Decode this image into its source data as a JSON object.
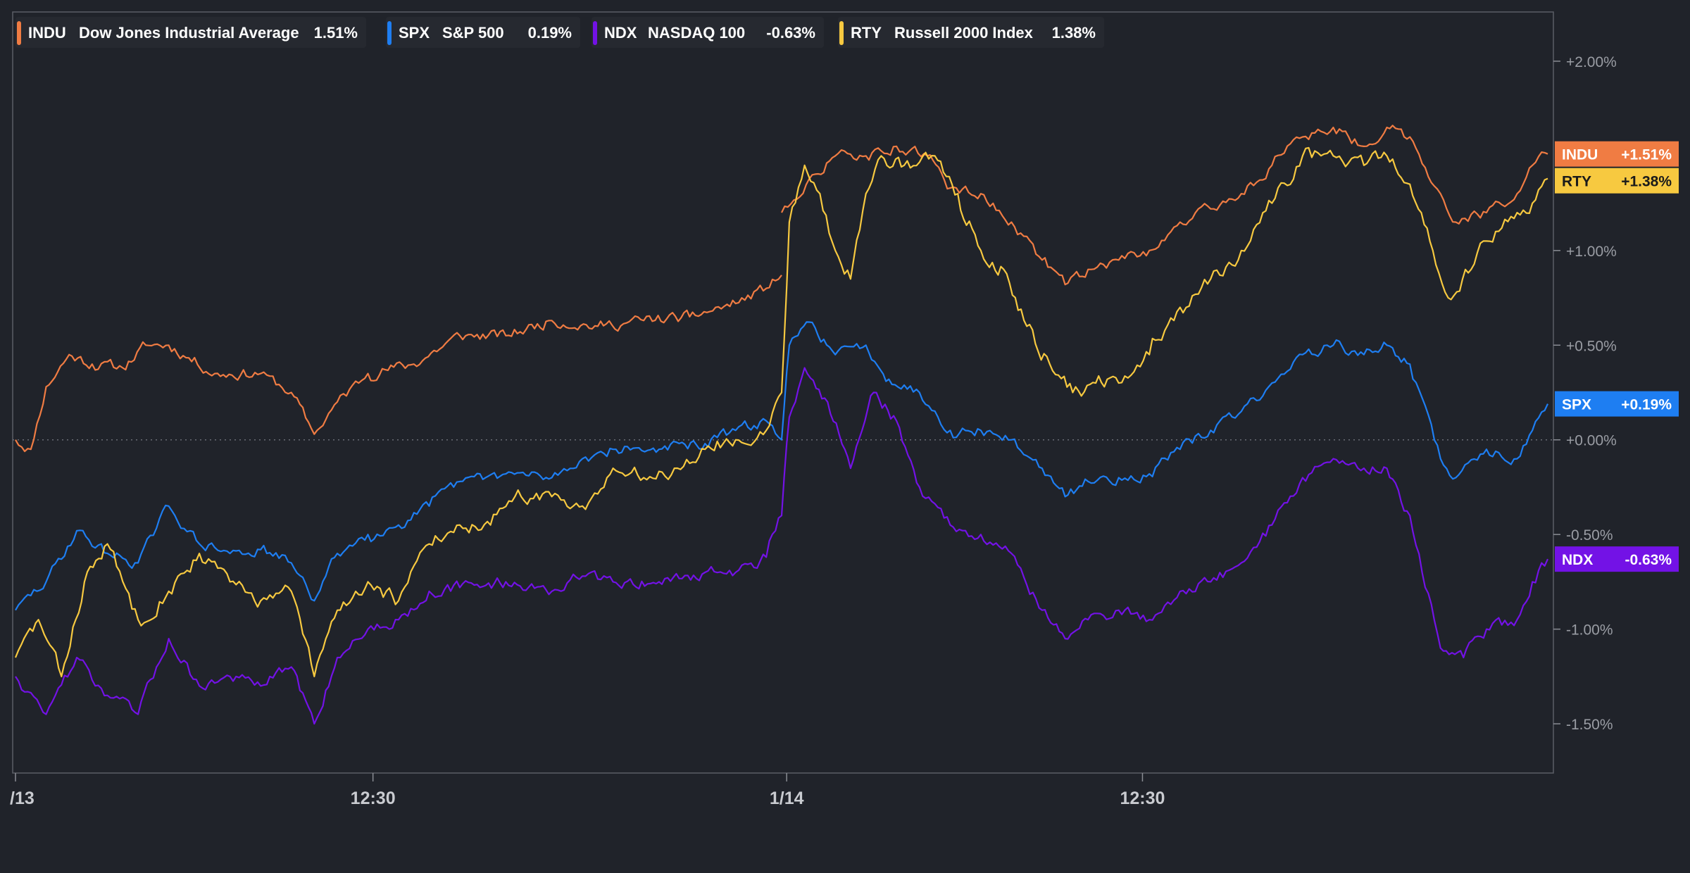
{
  "chart_data": {
    "type": "line",
    "title": "",
    "xlabel": "",
    "ylabel": "",
    "ylim": [
      -1.76,
      2.26
    ],
    "grid": false,
    "baseline": 0,
    "legend_placement": "top-left",
    "x_tick_labels": [
      "/13",
      "12:30",
      "1/14",
      "12:30"
    ],
    "y_tick_labels": [
      "+2.00%",
      "+1.00%",
      "+0.50%",
      "+0.00%",
      "-0.50%",
      "-1.00%",
      "-1.50%"
    ],
    "y_tick_values": [
      2.0,
      1.0,
      0.5,
      0.0,
      -0.5,
      -1.0,
      -1.5
    ],
    "series": [
      {
        "symbol": "INDU",
        "name": "Dow Jones Industrial Average",
        "change_label": "1.51%",
        "end_label": "+1.51%",
        "color": "#f07c43",
        "end_text_color": "#ffffff",
        "points": [
          [
            0.0,
            0.0
          ],
          [
            0.01,
            -0.05
          ],
          [
            0.02,
            0.28
          ],
          [
            0.035,
            0.45
          ],
          [
            0.05,
            0.4
          ],
          [
            0.07,
            0.38
          ],
          [
            0.085,
            0.5
          ],
          [
            0.1,
            0.5
          ],
          [
            0.13,
            0.35
          ],
          [
            0.16,
            0.35
          ],
          [
            0.18,
            0.25
          ],
          [
            0.195,
            0.03
          ],
          [
            0.21,
            0.2
          ],
          [
            0.23,
            0.35
          ],
          [
            0.26,
            0.4
          ],
          [
            0.29,
            0.55
          ],
          [
            0.32,
            0.55
          ],
          [
            0.35,
            0.63
          ],
          [
            0.38,
            0.6
          ],
          [
            0.41,
            0.63
          ],
          [
            0.44,
            0.65
          ],
          [
            0.47,
            0.72
          ],
          [
            0.49,
            0.8
          ],
          [
            0.5,
            0.87
          ],
          [
            0.5,
            1.2
          ],
          [
            0.52,
            1.4
          ],
          [
            0.535,
            1.5
          ],
          [
            0.555,
            1.5
          ],
          [
            0.575,
            1.55
          ],
          [
            0.595,
            1.5
          ],
          [
            0.61,
            1.33
          ],
          [
            0.63,
            1.3
          ],
          [
            0.65,
            1.15
          ],
          [
            0.67,
            0.95
          ],
          [
            0.685,
            0.82
          ],
          [
            0.7,
            0.9
          ],
          [
            0.72,
            0.95
          ],
          [
            0.74,
            1.0
          ],
          [
            0.76,
            1.15
          ],
          [
            0.78,
            1.22
          ],
          [
            0.8,
            1.3
          ],
          [
            0.82,
            1.45
          ],
          [
            0.84,
            1.6
          ],
          [
            0.86,
            1.65
          ],
          [
            0.88,
            1.55
          ],
          [
            0.895,
            1.65
          ],
          [
            0.91,
            1.6
          ],
          [
            0.93,
            1.3
          ],
          [
            0.94,
            1.15
          ],
          [
            0.96,
            1.2
          ],
          [
            0.98,
            1.3
          ],
          [
            0.99,
            1.45
          ],
          [
            1.0,
            1.51
          ]
        ]
      },
      {
        "symbol": "SPX",
        "name": "S&P 500",
        "change_label": "0.19%",
        "end_label": "+0.19%",
        "color": "#1e7ef2",
        "end_text_color": "#ffffff",
        "points": [
          [
            0.0,
            -0.9
          ],
          [
            0.02,
            -0.75
          ],
          [
            0.04,
            -0.48
          ],
          [
            0.06,
            -0.6
          ],
          [
            0.08,
            -0.65
          ],
          [
            0.1,
            -0.35
          ],
          [
            0.12,
            -0.55
          ],
          [
            0.14,
            -0.6
          ],
          [
            0.16,
            -0.58
          ],
          [
            0.18,
            -0.65
          ],
          [
            0.195,
            -0.85
          ],
          [
            0.21,
            -0.6
          ],
          [
            0.23,
            -0.5
          ],
          [
            0.25,
            -0.45
          ],
          [
            0.27,
            -0.35
          ],
          [
            0.29,
            -0.22
          ],
          [
            0.32,
            -0.18
          ],
          [
            0.35,
            -0.2
          ],
          [
            0.37,
            -0.1
          ],
          [
            0.39,
            -0.05
          ],
          [
            0.42,
            -0.05
          ],
          [
            0.45,
            -0.02
          ],
          [
            0.47,
            0.05
          ],
          [
            0.49,
            0.1
          ],
          [
            0.5,
            0.0
          ],
          [
            0.505,
            0.5
          ],
          [
            0.52,
            0.62
          ],
          [
            0.535,
            0.45
          ],
          [
            0.555,
            0.5
          ],
          [
            0.57,
            0.32
          ],
          [
            0.59,
            0.25
          ],
          [
            0.61,
            0.05
          ],
          [
            0.63,
            0.05
          ],
          [
            0.65,
            0.0
          ],
          [
            0.67,
            -0.15
          ],
          [
            0.685,
            -0.3
          ],
          [
            0.7,
            -0.22
          ],
          [
            0.72,
            -0.2
          ],
          [
            0.74,
            -0.18
          ],
          [
            0.76,
            -0.05
          ],
          [
            0.78,
            0.05
          ],
          [
            0.8,
            0.15
          ],
          [
            0.82,
            0.3
          ],
          [
            0.84,
            0.45
          ],
          [
            0.86,
            0.5
          ],
          [
            0.88,
            0.45
          ],
          [
            0.895,
            0.5
          ],
          [
            0.91,
            0.4
          ],
          [
            0.93,
            -0.1
          ],
          [
            0.94,
            -0.2
          ],
          [
            0.96,
            -0.05
          ],
          [
            0.98,
            -0.1
          ],
          [
            0.99,
            0.05
          ],
          [
            1.0,
            0.19
          ]
        ]
      },
      {
        "symbol": "NDX",
        "name": "NASDAQ 100",
        "change_label": "-0.63%",
        "end_label": "-0.63%",
        "color": "#7312e6",
        "end_text_color": "#ffffff",
        "points": [
          [
            0.0,
            -1.25
          ],
          [
            0.02,
            -1.45
          ],
          [
            0.04,
            -1.15
          ],
          [
            0.06,
            -1.35
          ],
          [
            0.08,
            -1.45
          ],
          [
            0.1,
            -1.05
          ],
          [
            0.12,
            -1.3
          ],
          [
            0.14,
            -1.25
          ],
          [
            0.16,
            -1.3
          ],
          [
            0.18,
            -1.2
          ],
          [
            0.195,
            -1.5
          ],
          [
            0.21,
            -1.15
          ],
          [
            0.23,
            -1.0
          ],
          [
            0.25,
            -0.95
          ],
          [
            0.27,
            -0.8
          ],
          [
            0.29,
            -0.78
          ],
          [
            0.32,
            -0.75
          ],
          [
            0.35,
            -0.8
          ],
          [
            0.37,
            -0.72
          ],
          [
            0.39,
            -0.75
          ],
          [
            0.42,
            -0.75
          ],
          [
            0.45,
            -0.7
          ],
          [
            0.47,
            -0.7
          ],
          [
            0.49,
            -0.62
          ],
          [
            0.5,
            -0.4
          ],
          [
            0.505,
            0.12
          ],
          [
            0.515,
            0.38
          ],
          [
            0.53,
            0.2
          ],
          [
            0.545,
            -0.15
          ],
          [
            0.56,
            0.25
          ],
          [
            0.575,
            0.1
          ],
          [
            0.59,
            -0.25
          ],
          [
            0.61,
            -0.45
          ],
          [
            0.63,
            -0.5
          ],
          [
            0.65,
            -0.6
          ],
          [
            0.67,
            -0.9
          ],
          [
            0.685,
            -1.05
          ],
          [
            0.7,
            -0.95
          ],
          [
            0.72,
            -0.9
          ],
          [
            0.74,
            -0.95
          ],
          [
            0.76,
            -0.8
          ],
          [
            0.78,
            -0.75
          ],
          [
            0.8,
            -0.65
          ],
          [
            0.82,
            -0.45
          ],
          [
            0.84,
            -0.2
          ],
          [
            0.86,
            -0.1
          ],
          [
            0.88,
            -0.15
          ],
          [
            0.895,
            -0.15
          ],
          [
            0.91,
            -0.4
          ],
          [
            0.93,
            -1.1
          ],
          [
            0.945,
            -1.15
          ],
          [
            0.96,
            -1.0
          ],
          [
            0.98,
            -0.95
          ],
          [
            0.99,
            -0.75
          ],
          [
            1.0,
            -0.63
          ]
        ]
      },
      {
        "symbol": "RTY",
        "name": "Russell 2000 Index",
        "change_label": "1.38%",
        "end_label": "+1.38%",
        "color": "#f7c940",
        "end_text_color": "#1a1a1a",
        "points": [
          [
            0.0,
            -1.15
          ],
          [
            0.015,
            -0.95
          ],
          [
            0.03,
            -1.25
          ],
          [
            0.045,
            -0.75
          ],
          [
            0.06,
            -0.55
          ],
          [
            0.08,
            -0.95
          ],
          [
            0.1,
            -0.8
          ],
          [
            0.12,
            -0.6
          ],
          [
            0.14,
            -0.75
          ],
          [
            0.16,
            -0.85
          ],
          [
            0.18,
            -0.8
          ],
          [
            0.195,
            -1.25
          ],
          [
            0.21,
            -0.9
          ],
          [
            0.23,
            -0.75
          ],
          [
            0.25,
            -0.85
          ],
          [
            0.27,
            -0.55
          ],
          [
            0.29,
            -0.45
          ],
          [
            0.31,
            -0.45
          ],
          [
            0.33,
            -0.3
          ],
          [
            0.35,
            -0.3
          ],
          [
            0.37,
            -0.35
          ],
          [
            0.39,
            -0.15
          ],
          [
            0.41,
            -0.2
          ],
          [
            0.43,
            -0.15
          ],
          [
            0.45,
            -0.05
          ],
          [
            0.47,
            0.0
          ],
          [
            0.49,
            0.05
          ],
          [
            0.5,
            0.25
          ],
          [
            0.505,
            1.15
          ],
          [
            0.515,
            1.45
          ],
          [
            0.525,
            1.3
          ],
          [
            0.535,
            1.0
          ],
          [
            0.545,
            0.85
          ],
          [
            0.555,
            1.3
          ],
          [
            0.565,
            1.5
          ],
          [
            0.58,
            1.45
          ],
          [
            0.6,
            1.5
          ],
          [
            0.615,
            1.3
          ],
          [
            0.63,
            1.0
          ],
          [
            0.645,
            0.9
          ],
          [
            0.66,
            0.6
          ],
          [
            0.675,
            0.4
          ],
          [
            0.69,
            0.25
          ],
          [
            0.705,
            0.3
          ],
          [
            0.72,
            0.3
          ],
          [
            0.74,
            0.45
          ],
          [
            0.76,
            0.7
          ],
          [
            0.78,
            0.85
          ],
          [
            0.8,
            1.0
          ],
          [
            0.82,
            1.25
          ],
          [
            0.84,
            1.5
          ],
          [
            0.86,
            1.5
          ],
          [
            0.88,
            1.45
          ],
          [
            0.895,
            1.5
          ],
          [
            0.91,
            1.35
          ],
          [
            0.925,
            1.0
          ],
          [
            0.935,
            0.75
          ],
          [
            0.95,
            0.9
          ],
          [
            0.96,
            1.05
          ],
          [
            0.98,
            1.2
          ],
          [
            0.99,
            1.25
          ],
          [
            1.0,
            1.38
          ]
        ]
      }
    ]
  }
}
